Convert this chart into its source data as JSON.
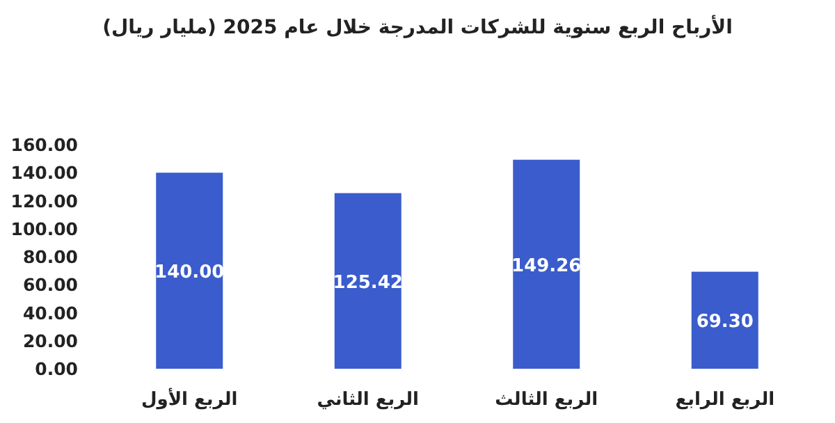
{
  "chart_data": {
    "type": "bar",
    "title": "الأرباح الربع سنوية للشركات المدرجة خلال عام 2025 (مليار ريال)",
    "categories": [
      "الربع الأول",
      "الربع الثاني",
      "الربع الثالث",
      "الربع الرابع"
    ],
    "values": [
      140.0,
      125.42,
      149.26,
      69.3
    ],
    "value_labels": [
      "140.00",
      "125.42",
      "149.26",
      "69.30"
    ],
    "color": "#3a5ccc",
    "ylim": [
      0,
      160
    ],
    "yticks": [
      {
        "value": 0,
        "label": "0.00"
      },
      {
        "value": 20,
        "label": "20.00"
      },
      {
        "value": 40,
        "label": "40.00"
      },
      {
        "value": 60,
        "label": "60.00"
      },
      {
        "value": 80,
        "label": "80.00"
      },
      {
        "value": 100,
        "label": "100.00"
      },
      {
        "value": 120,
        "label": "120.00"
      },
      {
        "value": 140,
        "label": "140.00"
      },
      {
        "value": 160,
        "label": "160.00"
      }
    ],
    "grid": false
  }
}
